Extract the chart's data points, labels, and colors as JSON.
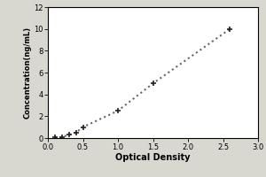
{
  "x_data": [
    0.1,
    0.2,
    0.3,
    0.4,
    0.5,
    1.0,
    1.5,
    2.6
  ],
  "y_data": [
    0.05,
    0.1,
    0.3,
    0.5,
    1.0,
    2.5,
    5.0,
    10.0
  ],
  "xlabel": "Optical Density",
  "ylabel": "Concentration(ng/mL)",
  "xlim": [
    0,
    3
  ],
  "ylim": [
    0,
    12
  ],
  "xticks": [
    0,
    0.5,
    1.0,
    1.5,
    2.0,
    2.5,
    3.0
  ],
  "yticks": [
    0,
    2,
    4,
    6,
    8,
    10,
    12
  ],
  "line_color": "#666666",
  "marker_color": "#222222",
  "plot_bg": "#ffffff",
  "fig_bg": "#d8d8d0",
  "line_style": "dotted",
  "line_width": 1.5,
  "marker_style": "+",
  "marker_size": 5,
  "marker_edge_width": 1.2,
  "xlabel_fontsize": 7,
  "ylabel_fontsize": 6,
  "tick_fontsize": 6,
  "spine_color": "#000000",
  "spine_linewidth": 0.8
}
